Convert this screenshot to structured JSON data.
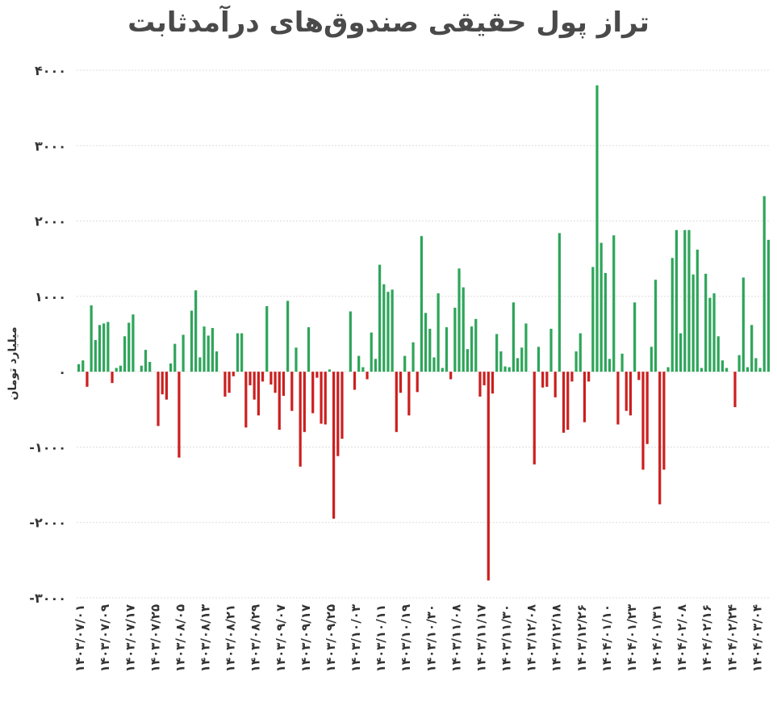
{
  "chart_data": {
    "type": "bar",
    "title": "تراز پول حقیقی صندوق‌های درآمدثابت",
    "ylabel": "میلیارد تومان",
    "xlabel": "",
    "ylim": [
      -3000,
      4000
    ],
    "yticks": [
      "-۳۰۰۰",
      "-۲۰۰۰",
      "-۱۰۰۰",
      "۰",
      "۱۰۰۰",
      "۲۰۰۰",
      "۳۰۰۰",
      "۴۰۰۰"
    ],
    "ytick_values": [
      -3000,
      -2000,
      -1000,
      0,
      1000,
      2000,
      3000,
      4000
    ],
    "x_tick_labels": [
      "۱۴۰۳/۰۷/۰۱",
      "۱۴۰۳/۰۷/۰۹",
      "۱۴۰۳/۰۷/۱۷",
      "۱۴۰۳/۰۷/۲۵",
      "۱۴۰۳/۰۸/۰۵",
      "۱۴۰۳/۰۸/۱۳",
      "۱۴۰۳/۰۸/۲۱",
      "۱۴۰۳/۰۸/۲۹",
      "۱۴۰۳/۰۹/۰۷",
      "۱۴۰۳/۰۹/۱۷",
      "۱۴۰۳/۰۹/۲۵",
      "۱۴۰۳/۱۰/۰۳",
      "۱۴۰۳/۱۰/۱۱",
      "۱۴۰۳/۱۰/۱۹",
      "۱۴۰۳/۱۰/۳۰",
      "۱۴۰۳/۱۱/۰۸",
      "۱۴۰۳/۱۱/۱۷",
      "۱۴۰۳/۱۱/۳۰",
      "۱۴۰۳/۱۲/۰۸",
      "۱۴۰۳/۱۲/۱۸",
      "۱۴۰۳/۱۲/۲۶",
      "۱۴۰۴/۰۱/۱۰",
      "۱۴۰۴/۰۱/۲۳",
      "۱۴۰۴/۰۱/۳۱",
      "۱۴۰۴/۰۲/۰۸",
      "۱۴۰۴/۰۲/۱۶",
      "۱۴۰۴/۰۲/۲۴",
      "۱۴۰۴/۰۳/۰۴"
    ],
    "x_tick_positions": [
      0,
      6,
      12,
      18,
      24,
      30,
      36,
      42,
      48,
      54,
      60,
      66,
      72,
      78,
      84,
      90,
      96,
      102,
      108,
      114,
      120,
      126,
      132,
      138,
      144,
      150,
      156,
      162
    ],
    "values": [
      100,
      150,
      -200,
      880,
      420,
      620,
      640,
      660,
      -150,
      50,
      80,
      470,
      650,
      760,
      0,
      80,
      290,
      130,
      0,
      -720,
      -300,
      -370,
      110,
      370,
      -1140,
      490,
      0,
      810,
      1080,
      190,
      600,
      480,
      580,
      270,
      0,
      -330,
      -280,
      -60,
      510,
      510,
      -740,
      -180,
      -370,
      -580,
      -130,
      870,
      -170,
      -280,
      -770,
      -320,
      940,
      -520,
      320,
      -1260,
      -800,
      590,
      -550,
      -80,
      -690,
      -700,
      30,
      -1950,
      -1120,
      -890,
      0,
      800,
      -240,
      210,
      60,
      -100,
      520,
      170,
      1420,
      1160,
      1060,
      1090,
      -800,
      -280,
      210,
      -580,
      390,
      -270,
      1800,
      780,
      570,
      190,
      1040,
      50,
      590,
      -100,
      850,
      1370,
      1120,
      300,
      600,
      700,
      -330,
      -180,
      -2770,
      -290,
      500,
      270,
      70,
      60,
      920,
      180,
      320,
      640,
      0,
      -1230,
      330,
      -210,
      -200,
      570,
      -340,
      1840,
      -810,
      -770,
      -130,
      270,
      510,
      -670,
      -130,
      1390,
      3800,
      1710,
      1310,
      170,
      1810,
      -700,
      240,
      -520,
      -580,
      920,
      -110,
      -1300,
      -960,
      330,
      1220,
      -1760,
      -1300,
      60,
      1510,
      1880,
      510,
      1880,
      1880,
      1290,
      1620,
      50,
      1300,
      980,
      1040,
      470,
      150,
      50,
      0,
      -470,
      220,
      1250,
      60,
      620,
      180,
      50,
      2330,
      1750
    ]
  },
  "colors": {
    "positive": "#2ea55a",
    "negative": "#cc1f1f",
    "grid": "#dcdcdc",
    "text": "#333333"
  }
}
